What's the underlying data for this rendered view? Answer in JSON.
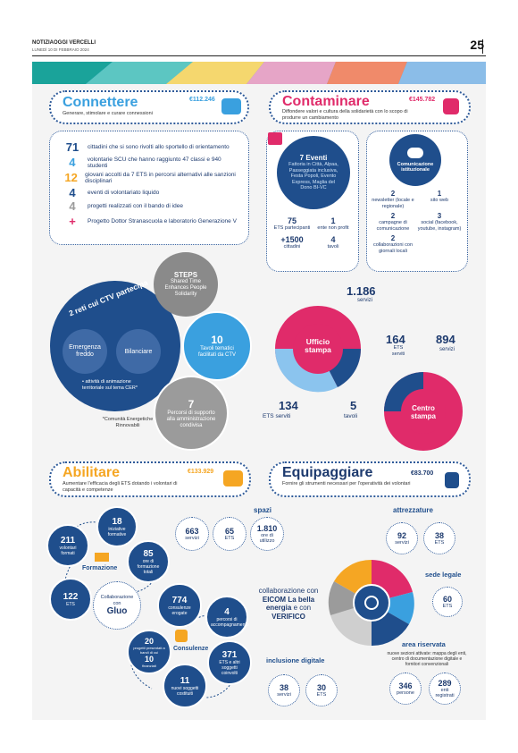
{
  "header": {
    "paper": "NOTIZIAOGGI VERCELLI",
    "date": "LUNEDÌ 10 DI FEBBRAIO 2024",
    "page": "25"
  },
  "colors": {
    "light_blue": "#3aa0df",
    "pink": "#e02b6a",
    "orange": "#f5a623",
    "navy": "#1f4e8c",
    "grey": "#9b9b9b"
  },
  "connettere": {
    "title": "Connettere",
    "sub": "Generare, stimolare e curare connessioni",
    "amount": "€112.246",
    "stats": [
      {
        "num": "71",
        "color": "#1f4e8c",
        "text": "cittadini che si sono rivolti allo sportello di orientamento"
      },
      {
        "num": "4",
        "color": "#3aa0df",
        "text": "volontarie SCU che hanno raggiunto 47 classi e 940 studenti"
      },
      {
        "num": "12",
        "color": "#f5a623",
        "text": "giovani accolti da 7 ETS in percorsi alternativi alle sanzioni disciplinari"
      },
      {
        "num": "4",
        "color": "#1f4e8c",
        "text": "eventi di volontariato liquido"
      },
      {
        "num": "4",
        "color": "#9b9b9b",
        "text": "progetti realizzati con il bando di idee"
      },
      {
        "num": "+",
        "color": "#e02b6a",
        "text": "Progetto Dottor Stranascuola e laboratorio Generazione V"
      }
    ],
    "ctv": {
      "title": "2 reti cui CTV partecipa",
      "net1": "Emergenza freddo",
      "net2": "Bilanciare",
      "bullet": "• attività di animazione territoriale sul tema CER*",
      "note": "*Comunità Energetiche Rinnovabili"
    },
    "steps": {
      "title": "STEPS",
      "text": "Shared Time Enhances People Solidarity"
    },
    "tavoli": {
      "num": "10",
      "text": "Tavoli tematici facilitati da CTV"
    },
    "percorsi": {
      "num": "7",
      "text": "Percorsi di supporto alla amministrazione condivisa"
    }
  },
  "contaminare": {
    "title": "Contaminare",
    "sub": "Diffondere valori e cultura della solidarietà con lo scopo di produrre un cambiamento",
    "amount": "€145.782",
    "eventi": {
      "title": "7 Eventi",
      "text": "Fattoria in Città, Alpaa, Passeggiata inclusiva, Festa Popoli, Evento Express, Maglia del Dono BI-VC",
      "stats": [
        {
          "num": "75",
          "text": "ETS partecipanti"
        },
        {
          "num": "1",
          "text": "ente non profit"
        },
        {
          "num": "+1500",
          "text": "cittadini"
        },
        {
          "num": "4",
          "text": "tavoli"
        }
      ]
    },
    "comunicazione": {
      "title": "Comunicazione istituzionale",
      "stats": [
        {
          "num": "2",
          "text": "newsletter (locale e regionale)"
        },
        {
          "num": "1",
          "text": "sito web"
        },
        {
          "num": "2",
          "text": "campagne di comunicazione"
        },
        {
          "num": "3",
          "text": "social (facebook, youtube, instagram)"
        },
        {
          "num": "2",
          "text": "collaborazioni con giornali locali"
        }
      ]
    },
    "ufficio": {
      "label": "Ufficio stampa",
      "servizi": "1.186",
      "servizi_label": "servizi",
      "ets": "134",
      "ets_label": "ETS serviti",
      "tavoli": "5",
      "tavoli_label": "tavoli"
    },
    "centro": {
      "label": "Centro stampa",
      "ets": "164",
      "ets_label": "ETS serviti",
      "servizi": "894",
      "servizi_label": "servizi"
    }
  },
  "abilitare": {
    "title": "Abilitare",
    "sub": "Aumentare l'efficacia degli ETS dotando i volontari di capacità e competenze",
    "amount": "€133.929",
    "formazione": {
      "label": "Formazione",
      "b1": {
        "num": "18",
        "text": "iniziative formative"
      },
      "b2": {
        "num": "211",
        "text": "volontari formati"
      },
      "b3": {
        "num": "85",
        "text": "ore di formazione totali"
      },
      "b4": {
        "num": "122",
        "text": "ETS"
      },
      "gluo_pre": "Collaborazione con",
      "gluo": "Gluo"
    },
    "consulenze": {
      "label": "Consulenze",
      "b1": {
        "num": "774",
        "text": "consulenze erogate"
      },
      "b2": {
        "num": "4",
        "text": "percorsi di accompagnamento"
      },
      "b3": {
        "num": "20",
        "text": "progetti presentati a bandi di cui"
      },
      "b3b": {
        "num": "10",
        "text": "finanziati"
      },
      "b4": {
        "num": "371",
        "text": "ETS e altri soggetti coinvolti"
      },
      "b5": {
        "num": "11",
        "text": "nuovi soggetti costituiti"
      }
    }
  },
  "equipaggiare": {
    "title": "Equipaggiare",
    "sub": "Fornire gli strumenti necessari per l'operatività dei volontari",
    "amount": "€83.700",
    "spazi": {
      "title": "spazi",
      "s": [
        {
          "num": "663",
          "text": "servizi"
        },
        {
          "num": "65",
          "text": "ETS"
        },
        {
          "num": "1.810",
          "text": "ore di utilizzo"
        }
      ]
    },
    "attrezzature": {
      "title": "attrezzature",
      "s": [
        {
          "num": "92",
          "text": "servizi"
        },
        {
          "num": "38",
          "text": "ETS"
        }
      ]
    },
    "sede": {
      "title": "sede legale",
      "num": "60",
      "text": "ETS"
    },
    "area": {
      "title": "area riservata",
      "text": "nuove sezioni attivate: mappa degli enti, centro di documentazione digitale e fornitori convenzionali",
      "s": [
        {
          "num": "346",
          "text": "persone"
        },
        {
          "num": "289",
          "text": "enti registrati"
        }
      ]
    },
    "inclusione": {
      "title": "inclusione digitale",
      "s": [
        {
          "num": "38",
          "text": "servizi"
        },
        {
          "num": "30",
          "text": "ETS"
        }
      ]
    },
    "collab": {
      "pre": "collaborazione con",
      "eicom": "EICOM",
      "mid": "La bella energia",
      "and": "e con",
      "verifico": "VERIFICO"
    }
  }
}
